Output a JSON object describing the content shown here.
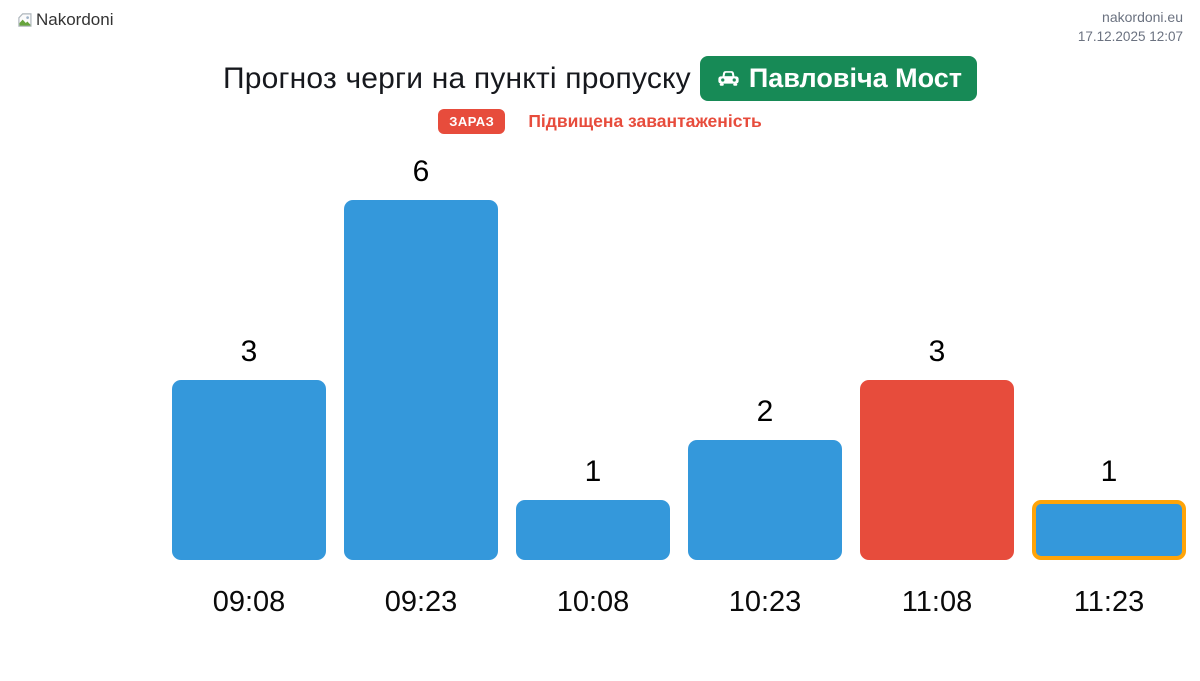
{
  "header": {
    "logo_alt": "Nakordoni",
    "site": "nakordoni.eu",
    "datetime": "17.12.2025 12:07"
  },
  "title": {
    "text": "Прогноз черги на пункті пропуску",
    "crossing_badge_label": "Павловіча Мост",
    "crossing_badge_icon": "car-front-icon"
  },
  "status": {
    "badge_label": "ЗАРАЗ",
    "text": "Підвищена завантаженість"
  },
  "colors": {
    "badge_green": "#178a56",
    "status_red": "#e74c3c",
    "bar_blue": "#3498db",
    "bar_red": "#e74c3c",
    "highlight_orange": "#ffa408",
    "meta_gray": "#6b7280"
  },
  "chart_data": {
    "type": "bar",
    "title": "Прогноз черги на пункті пропуску Павловіча Мост",
    "categories": [
      "09:08",
      "09:23",
      "10:08",
      "10:23",
      "11:08",
      "11:23"
    ],
    "values": [
      3,
      6,
      1,
      2,
      3,
      1
    ],
    "bar_colors": [
      "#3498db",
      "#3498db",
      "#3498db",
      "#3498db",
      "#e74c3c",
      "#3498db"
    ],
    "highlighted_index": 5,
    "xlabel": "",
    "ylabel": "",
    "ylim": [
      0,
      6
    ],
    "grid": false,
    "legend": "none",
    "data_labels": "above-bars"
  }
}
